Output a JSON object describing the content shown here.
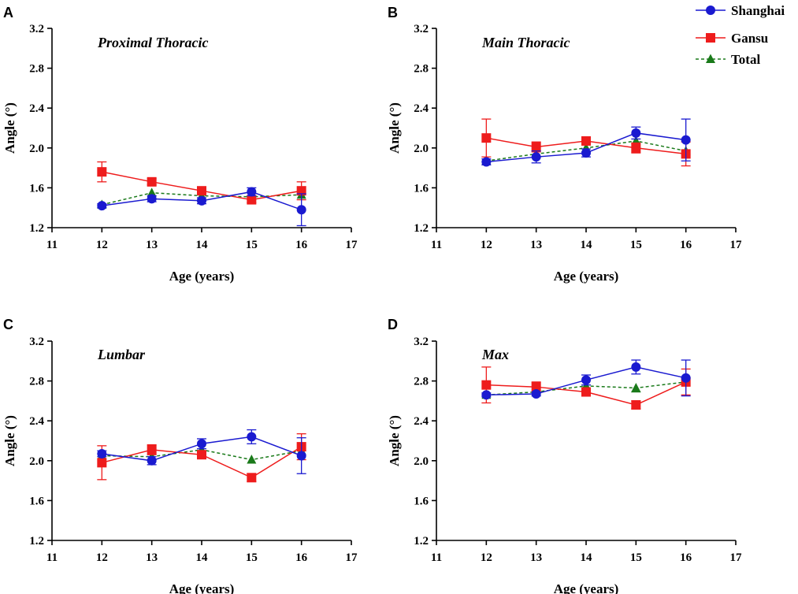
{
  "legend": [
    {
      "name": "Shanghai",
      "color": "#1a1ad0",
      "marker": "circle",
      "dash": false
    },
    {
      "name": "Gansu",
      "color": "#ee1c1c",
      "marker": "square",
      "dash": false
    },
    {
      "name": "Total",
      "color": "#1a7a1a",
      "marker": "triangle",
      "dash": true
    }
  ],
  "chart_data": [
    {
      "type": "line",
      "letter": "A",
      "title": "Proximal Thoracic",
      "xlabel": "Age (years)",
      "ylabel": "Angle (°)",
      "xlim": [
        11,
        17
      ],
      "ylim": [
        1.2,
        3.2
      ],
      "xticks": [
        "11",
        "12",
        "13",
        "14",
        "15",
        "16",
        "17"
      ],
      "yticks": [
        "1.2",
        "1.6",
        "2.0",
        "2.4",
        "2.8",
        "3.2"
      ],
      "x": [
        12,
        13,
        14,
        15,
        16
      ],
      "series": [
        {
          "name": "Total",
          "values": [
            1.43,
            1.55,
            1.52,
            1.51,
            1.53
          ],
          "err": [
            0,
            0,
            0,
            0,
            0
          ]
        },
        {
          "name": "Gansu",
          "values": [
            1.76,
            1.66,
            1.57,
            1.48,
            1.57
          ],
          "err": [
            0.1,
            0.03,
            0.02,
            0.03,
            0.09
          ]
        },
        {
          "name": "Shanghai",
          "values": [
            1.42,
            1.49,
            1.47,
            1.56,
            1.38
          ],
          "err": [
            0.02,
            0.03,
            0.03,
            0.04,
            0.16
          ]
        }
      ]
    },
    {
      "type": "line",
      "letter": "B",
      "title": "Main Thoracic",
      "xlabel": "Age (years)",
      "ylabel": "Angle (°)",
      "xlim": [
        11,
        17
      ],
      "ylim": [
        1.2,
        3.2
      ],
      "xticks": [
        "11",
        "12",
        "13",
        "14",
        "15",
        "16",
        "17"
      ],
      "yticks": [
        "1.2",
        "1.6",
        "2.0",
        "2.4",
        "2.8",
        "3.2"
      ],
      "x": [
        12,
        13,
        14,
        15,
        16
      ],
      "series": [
        {
          "name": "Total",
          "values": [
            1.87,
            1.94,
            2.0,
            2.07,
            1.97
          ],
          "err": [
            0,
            0,
            0,
            0,
            0
          ]
        },
        {
          "name": "Gansu",
          "values": [
            2.1,
            2.01,
            2.07,
            2.0,
            1.94
          ],
          "err": [
            0.19,
            0.05,
            0.03,
            0.05,
            0.12
          ]
        },
        {
          "name": "Shanghai",
          "values": [
            1.86,
            1.91,
            1.95,
            2.15,
            2.08
          ],
          "err": [
            0.03,
            0.06,
            0.04,
            0.06,
            0.21
          ]
        }
      ]
    },
    {
      "type": "line",
      "letter": "C",
      "title": "Lumbar",
      "xlabel": "Age (years)",
      "ylabel": "Angle (°)",
      "xlim": [
        11,
        17
      ],
      "ylim": [
        1.2,
        3.2
      ],
      "xticks": [
        "11",
        "12",
        "13",
        "14",
        "15",
        "16",
        "17"
      ],
      "yticks": [
        "1.2",
        "1.6",
        "2.0",
        "2.4",
        "2.8",
        "3.2"
      ],
      "x": [
        12,
        13,
        14,
        15,
        16
      ],
      "series": [
        {
          "name": "Total",
          "values": [
            2.05,
            2.04,
            2.11,
            2.01,
            2.1
          ],
          "err": [
            0,
            0,
            0,
            0,
            0
          ]
        },
        {
          "name": "Gansu",
          "values": [
            1.98,
            2.11,
            2.06,
            1.83,
            2.14
          ],
          "err": [
            0.17,
            0.05,
            0.04,
            0.04,
            0.13
          ]
        },
        {
          "name": "Shanghai",
          "values": [
            2.07,
            2.0,
            2.17,
            2.24,
            2.05
          ],
          "err": [
            0.03,
            0.04,
            0.05,
            0.07,
            0.18
          ]
        }
      ]
    },
    {
      "type": "line",
      "letter": "D",
      "title": "Max",
      "xlabel": "Age (years)",
      "ylabel": "Angle (°)",
      "xlim": [
        11,
        17
      ],
      "ylim": [
        1.2,
        3.2
      ],
      "xticks": [
        "11",
        "12",
        "13",
        "14",
        "15",
        "16",
        "17"
      ],
      "yticks": [
        "1.2",
        "1.6",
        "2.0",
        "2.4",
        "2.8",
        "3.2"
      ],
      "x": [
        12,
        13,
        14,
        15,
        16
      ],
      "series": [
        {
          "name": "Total",
          "values": [
            2.66,
            2.69,
            2.75,
            2.73,
            2.79
          ],
          "err": [
            0,
            0,
            0,
            0.04,
            0
          ],
          "errSide": "down"
        },
        {
          "name": "Gansu",
          "values": [
            2.76,
            2.74,
            2.69,
            2.56,
            2.79
          ],
          "err": [
            0.18,
            0.05,
            0.03,
            0.04,
            0.13
          ]
        },
        {
          "name": "Shanghai",
          "values": [
            2.66,
            2.67,
            2.81,
            2.94,
            2.83
          ],
          "err": [
            0.02,
            0.02,
            0.05,
            0.07,
            0.18
          ]
        }
      ]
    }
  ]
}
